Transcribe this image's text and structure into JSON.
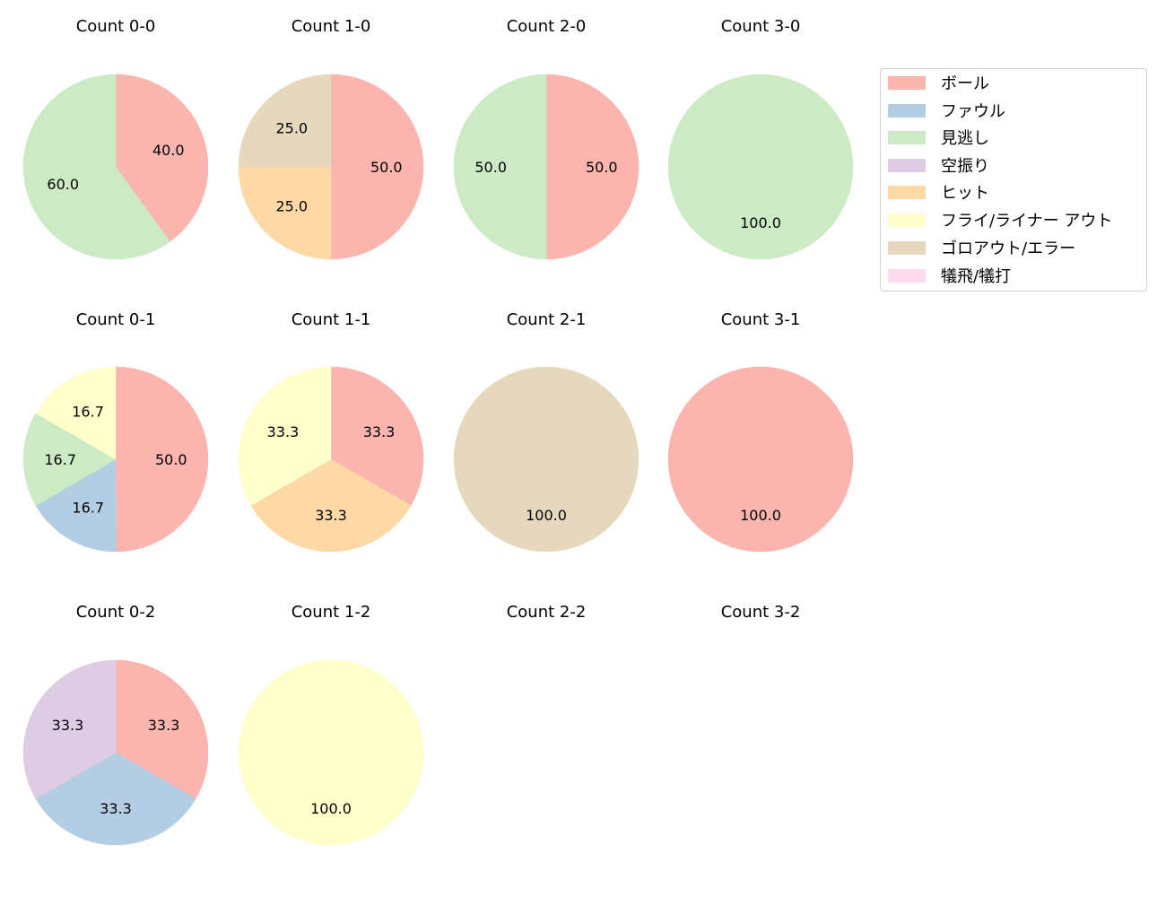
{
  "chart_data": {
    "type": "pie",
    "title": "",
    "legend": {
      "position": "upper right",
      "entries": [
        {
          "label": "ボール",
          "color": "#fbb4ae"
        },
        {
          "label": "ファウル",
          "color": "#b3cde3"
        },
        {
          "label": "見逃し",
          "color": "#ccebc5"
        },
        {
          "label": "空振り",
          "color": "#decbe4"
        },
        {
          "label": "ヒット",
          "color": "#fed9a6"
        },
        {
          "label": "フライ/ライナー アウト",
          "color": "#ffffcc"
        },
        {
          "label": "ゴロアウト/エラー",
          "color": "#e5d8bd"
        },
        {
          "label": "犠飛/犠打",
          "color": "#fddaec"
        }
      ]
    },
    "categories": [
      "ボール",
      "ファウル",
      "見逃し",
      "空振り",
      "ヒット",
      "フライ/ライナー アウト",
      "ゴロアウト/エラー",
      "犠飛/犠打"
    ],
    "start_angle": 90,
    "direction": "clockwise",
    "subplots": [
      {
        "title": "Count 0-0",
        "row": 0,
        "col": 0,
        "values": [
          40.0,
          0,
          60.0,
          0,
          0,
          0,
          0,
          0
        ]
      },
      {
        "title": "Count 1-0",
        "row": 0,
        "col": 1,
        "values": [
          50.0,
          0,
          0,
          0,
          25.0,
          0,
          25.0,
          0
        ]
      },
      {
        "title": "Count 2-0",
        "row": 0,
        "col": 2,
        "values": [
          50.0,
          0,
          50.0,
          0,
          0,
          0,
          0,
          0
        ]
      },
      {
        "title": "Count 3-0",
        "row": 0,
        "col": 3,
        "values": [
          0,
          0,
          100.0,
          0,
          0,
          0,
          0,
          0
        ]
      },
      {
        "title": "Count 0-1",
        "row": 1,
        "col": 0,
        "values": [
          50.0,
          16.7,
          16.7,
          0,
          0,
          16.7,
          0,
          0
        ]
      },
      {
        "title": "Count 1-1",
        "row": 1,
        "col": 1,
        "values": [
          33.3,
          0,
          0,
          0,
          33.3,
          33.3,
          0,
          0
        ]
      },
      {
        "title": "Count 2-1",
        "row": 1,
        "col": 2,
        "values": [
          0,
          0,
          0,
          0,
          0,
          0,
          100.0,
          0
        ]
      },
      {
        "title": "Count 3-1",
        "row": 1,
        "col": 3,
        "values": [
          100.0,
          0,
          0,
          0,
          0,
          0,
          0,
          0
        ]
      },
      {
        "title": "Count 0-2",
        "row": 2,
        "col": 0,
        "values": [
          33.3,
          33.3,
          0,
          33.3,
          0,
          0,
          0,
          0
        ]
      },
      {
        "title": "Count 1-2",
        "row": 2,
        "col": 1,
        "values": [
          0,
          0,
          0,
          0,
          0,
          100.0,
          0,
          0
        ]
      },
      {
        "title": "Count 2-2",
        "row": 2,
        "col": 2,
        "values": []
      },
      {
        "title": "Count 3-2",
        "row": 2,
        "col": 3,
        "values": []
      }
    ]
  }
}
